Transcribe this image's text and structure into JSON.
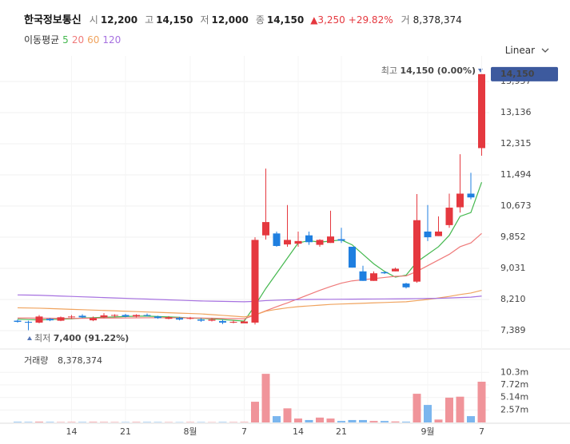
{
  "header": {
    "name": "한국정보통신",
    "stats": [
      {
        "label": "시",
        "value": "12,200"
      },
      {
        "label": "고",
        "value": "14,150"
      },
      {
        "label": "저",
        "value": "12,000"
      },
      {
        "label": "종",
        "value": "14,150"
      }
    ],
    "change": "▲3,250",
    "change_pct": "+29.82%",
    "volume_label": "거",
    "volume": "8,378,374"
  },
  "scale": "Linear",
  "chart_data": {
    "type": "candlestick",
    "categories": [
      null,
      null,
      null,
      null,
      null,
      "14",
      null,
      null,
      null,
      null,
      "21",
      null,
      null,
      null,
      null,
      null,
      "8월",
      null,
      null,
      null,
      null,
      "7",
      null,
      null,
      null,
      null,
      "14",
      null,
      null,
      null,
      "21",
      null,
      null,
      null,
      null,
      null,
      null,
      null,
      "9월",
      null,
      null,
      null,
      null,
      "7"
    ],
    "open": [
      7650,
      7620,
      7600,
      7700,
      7650,
      7740,
      7780,
      7660,
      7740,
      7780,
      7800,
      7760,
      7800,
      7760,
      7700,
      7720,
      7700,
      7680,
      7650,
      7640,
      7600,
      7580,
      7600,
      9900,
      9950,
      9660,
      9680,
      9900,
      9650,
      9700,
      9800,
      9600,
      8950,
      8700,
      8930,
      8950,
      8630,
      8680,
      10000,
      9880,
      10170,
      10640,
      11000,
      12200
    ],
    "high": [
      7680,
      7650,
      7800,
      7720,
      7760,
      7800,
      7820,
      7760,
      7850,
      7820,
      7830,
      7820,
      7840,
      7780,
      7770,
      7750,
      7750,
      7720,
      7720,
      7680,
      7660,
      7670,
      9850,
      11660,
      10000,
      10700,
      10000,
      10000,
      9800,
      10550,
      10100,
      9600,
      9100,
      8950,
      8950,
      9050,
      8650,
      10990,
      10700,
      10400,
      11000,
      12040,
      11550,
      14150
    ],
    "low": [
      7600,
      7400,
      7580,
      7640,
      7640,
      7700,
      7720,
      7640,
      7720,
      7740,
      7740,
      7740,
      7760,
      7700,
      7690,
      7660,
      7680,
      7620,
      7630,
      7560,
      7580,
      7600,
      7550,
      9790,
      9600,
      9600,
      9600,
      9650,
      9600,
      9700,
      9700,
      9050,
      8700,
      8700,
      8880,
      8950,
      8500,
      8650,
      9750,
      9880,
      10100,
      10500,
      10850,
      12000
    ],
    "close": [
      7620,
      7600,
      7760,
      7660,
      7740,
      7760,
      7740,
      7720,
      7790,
      7800,
      7760,
      7800,
      7780,
      7720,
      7740,
      7680,
      7720,
      7650,
      7680,
      7600,
      7620,
      7630,
      9780,
      10250,
      9620,
      9780,
      9750,
      9720,
      9780,
      9870,
      9760,
      9050,
      8700,
      8900,
      8900,
      9020,
      8530,
      10300,
      9850,
      10000,
      10630,
      11000,
      10900,
      14150
    ],
    "up_color": "#e5383f",
    "down_color": "#1f7fe0",
    "ylim": [
      7052,
      14315
    ],
    "yticks": [
      {
        "value": 7389,
        "label": "7,389"
      },
      {
        "value": 8210,
        "label": "8,210"
      },
      {
        "value": 9031,
        "label": "9,031"
      },
      {
        "value": 9852,
        "label": "9,852"
      },
      {
        "value": 10673,
        "label": "10,673"
      },
      {
        "value": 11494,
        "label": "11,494"
      },
      {
        "value": 12315,
        "label": "12,315"
      },
      {
        "value": 13136,
        "label": "13,136"
      },
      {
        "value": 13957,
        "label": "13,957"
      }
    ],
    "grid": true,
    "last_price": {
      "value": 14150,
      "label": "14,150"
    },
    "high_note": {
      "label": "최고",
      "text": "14,150 (0.00%)"
    },
    "low_note": {
      "label": "최저",
      "text": "7,400 (91.22%)"
    },
    "moving_averages": {
      "label": "이동평균",
      "series": [
        {
          "name": "5",
          "color": "#45b84f",
          "values": [
            7690,
            7680,
            7670,
            7680,
            7690,
            7700,
            7720,
            7730,
            7740,
            7750,
            7760,
            7770,
            7770,
            7760,
            7750,
            7740,
            7720,
            7710,
            7700,
            7680,
            7660,
            7640,
            8050,
            8500,
            8900,
            9300,
            9700,
            9760,
            9720,
            9750,
            9780,
            9650,
            9400,
            9150,
            8950,
            8800,
            8850,
            9200,
            9400,
            9600,
            9900,
            10400,
            10500,
            11300
          ]
        },
        {
          "name": "20",
          "color": "#ef7a7a",
          "values": [
            7720,
            7720,
            7715,
            7715,
            7710,
            7710,
            7712,
            7715,
            7718,
            7720,
            7722,
            7725,
            7727,
            7728,
            7727,
            7725,
            7722,
            7720,
            7715,
            7710,
            7705,
            7700,
            7800,
            7910,
            8020,
            8120,
            8230,
            8340,
            8450,
            8550,
            8640,
            8700,
            8730,
            8760,
            8790,
            8820,
            8830,
            8950,
            9100,
            9250,
            9400,
            9600,
            9700,
            9950
          ]
        },
        {
          "name": "60",
          "color": "#f0a35e",
          "values": [
            7990,
            7985,
            7980,
            7970,
            7960,
            7950,
            7940,
            7930,
            7920,
            7910,
            7900,
            7890,
            7880,
            7870,
            7860,
            7850,
            7840,
            7830,
            7810,
            7790,
            7770,
            7750,
            7800,
            7900,
            7950,
            7990,
            8020,
            8040,
            8060,
            8080,
            8090,
            8100,
            8110,
            8120,
            8130,
            8140,
            8150,
            8180,
            8210,
            8250,
            8290,
            8340,
            8380,
            8450
          ]
        },
        {
          "name": "120",
          "color": "#a671e0",
          "values": [
            8330,
            8325,
            8320,
            8310,
            8300,
            8290,
            8280,
            8270,
            8260,
            8250,
            8240,
            8230,
            8220,
            8210,
            8200,
            8190,
            8180,
            8170,
            8165,
            8160,
            8155,
            8150,
            8160,
            8180,
            8190,
            8200,
            8205,
            8210,
            8212,
            8214,
            8216,
            8218,
            8220,
            8222,
            8224,
            8226,
            8228,
            8232,
            8236,
            8240,
            8250,
            8260,
            8270,
            8300
          ]
        }
      ]
    },
    "volume": {
      "label": "거래량",
      "total": "8,378,374",
      "up_color": "#f0949a",
      "down_color": "#7bb6ee",
      "values": [
        0.12,
        0.1,
        0.15,
        0.1,
        0.08,
        0.1,
        0.09,
        0.12,
        0.1,
        0.08,
        0.07,
        0.1,
        0.09,
        0.08,
        0.07,
        0.06,
        0.08,
        0.07,
        0.06,
        0.09,
        0.08,
        0.1,
        4.26,
        10.0,
        1.3,
        2.9,
        0.8,
        0.5,
        1.0,
        0.8,
        0.3,
        0.5,
        0.5,
        0.3,
        0.3,
        0.2,
        0.15,
        5.9,
        3.6,
        0.6,
        5.1,
        5.3,
        1.3,
        8.378374
      ],
      "ylim": [
        0,
        11.5
      ],
      "yticks": [
        {
          "value": 2.57,
          "label": "2.57m"
        },
        {
          "value": 5.14,
          "label": "5.14m"
        },
        {
          "value": 7.72,
          "label": "7.72m"
        },
        {
          "value": 10.3,
          "label": "10.3m"
        }
      ]
    }
  }
}
